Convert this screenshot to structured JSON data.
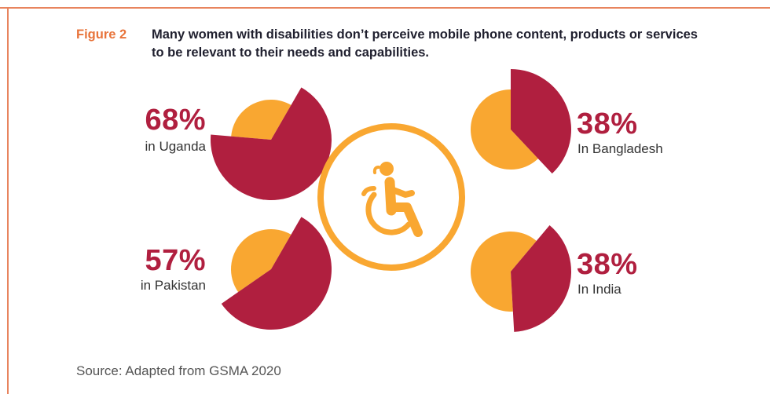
{
  "header": {
    "figure_label": "Figure 2",
    "title": "Many women with disabilities don’t perceive mobile phone content, products or services to be relevant to their needs and capabilities."
  },
  "colors": {
    "primary": "#b01f3f",
    "secondary": "#f9a731",
    "accent_orange": "#e8743b",
    "frame": "#e8845e"
  },
  "icon": "wheelchair-user-icon",
  "chart_data": {
    "type": "pie",
    "title": "Many women with disabilities don’t perceive mobile phone content, products or services to be relevant to their needs and capabilities.",
    "series": [
      {
        "label_value": "68%",
        "location": "in Uganda",
        "value": 68
      },
      {
        "label_value": "38%",
        "location": "In Bangladesh",
        "value": 38
      },
      {
        "label_value": "57%",
        "location": "in Pakistan",
        "value": 57
      },
      {
        "label_value": "38%",
        "location": "In India",
        "value": 38
      }
    ]
  },
  "source": "Source: Adapted from GSMA 2020"
}
